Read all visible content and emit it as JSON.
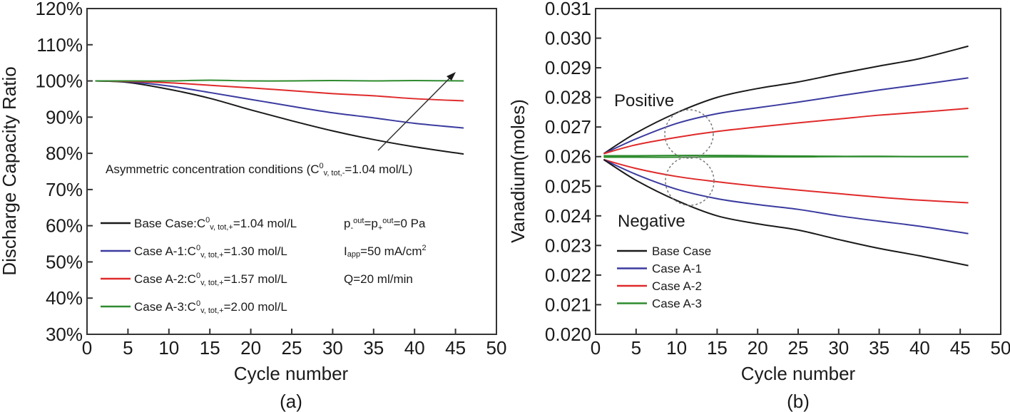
{
  "chart_data": [
    {
      "panel": "(a)",
      "type": "line",
      "title": "",
      "xlabel": "Cycle number",
      "ylabel": "Discharge Capacity Ratio",
      "xlim": [
        0,
        50
      ],
      "ylim": [
        30,
        120
      ],
      "x_ticks": [
        "0",
        "5",
        "10",
        "15",
        "20",
        "25",
        "30",
        "35",
        "40",
        "45",
        "50"
      ],
      "y_ticks": [
        "30%",
        "40%",
        "50%",
        "60%",
        "70%",
        "80%",
        "90%",
        "100%",
        "110%",
        "120%"
      ],
      "grid": false,
      "legend_position": "bottom-left",
      "annotation": {
        "main": "Asymmetric concentration conditions (C",
        "sup": "0",
        "sub": "v, tot,-",
        "tail": "=1.04 mol/L)"
      },
      "conditions": [
        {
          "id": "pressure",
          "parts": [
            "p",
            "-",
            "out",
            "=p",
            "+",
            "out",
            "=0 Pa"
          ]
        },
        {
          "id": "current",
          "parts": [
            "I",
            "app",
            "=50 mA/cm",
            "2"
          ]
        },
        {
          "id": "flow",
          "text": "Q=20 ml/min"
        }
      ],
      "x": [
        1,
        5,
        10,
        15,
        20,
        25,
        30,
        35,
        40,
        46
      ],
      "series": [
        {
          "name": "Base Case",
          "legend_prefix": "Base Case:C",
          "legend_value": "=1.04 mol/L",
          "color": "#1a1a1a",
          "values": [
            100,
            99.6,
            97.7,
            95.2,
            92.0,
            89.0,
            86.2,
            83.8,
            81.8,
            79.8
          ]
        },
        {
          "name": "Case A-1",
          "legend_prefix": "Case A-1:C",
          "legend_value": "=1.30 mol/L",
          "color": "#3b3ba0",
          "values": [
            100,
            99.8,
            98.6,
            96.8,
            94.9,
            93.0,
            91.2,
            89.8,
            88.3,
            87.0
          ]
        },
        {
          "name": "Case A-2",
          "legend_prefix": "Case A-2:C",
          "legend_value": "=1.57 mol/L",
          "color": "#e02a2a",
          "values": [
            100,
            99.9,
            99.5,
            98.8,
            98.1,
            97.3,
            96.5,
            95.9,
            95.1,
            94.5
          ]
        },
        {
          "name": "Case A-3",
          "legend_prefix": "Case A-3:C",
          "legend_value": "=2.00 mol/L",
          "color": "#2e8b2e",
          "values": [
            100,
            100,
            100,
            100.2,
            100,
            100,
            100.1,
            100,
            100.1,
            100
          ]
        }
      ],
      "legend_sup": "0",
      "legend_sub": "v, tot,+"
    },
    {
      "panel": "(b)",
      "type": "line",
      "title": "",
      "xlabel": "Cycle number",
      "ylabel": "Vanadium(moles)",
      "xlim": [
        0,
        50
      ],
      "ylim": [
        0.02,
        0.031
      ],
      "x_ticks": [
        "0",
        "5",
        "10",
        "15",
        "20",
        "25",
        "30",
        "35",
        "40",
        "45",
        "50"
      ],
      "y_ticks": [
        "0.020",
        "0.021",
        "0.022",
        "0.023",
        "0.024",
        "0.025",
        "0.026",
        "0.027",
        "0.028",
        "0.029",
        "0.030",
        "0.031"
      ],
      "grid": false,
      "legend_position": "bottom-left",
      "annotations": [
        "Positive",
        "Negative"
      ],
      "x": [
        1,
        5,
        10,
        15,
        20,
        25,
        30,
        35,
        40,
        46
      ],
      "series": [
        {
          "name": "Base Case (Positive)",
          "legend": "Base Case",
          "color": "#1a1a1a",
          "values": [
            0.0261,
            0.0268,
            0.02748,
            0.028,
            0.0283,
            0.02852,
            0.0288,
            0.02906,
            0.02931,
            0.02973
          ]
        },
        {
          "name": "Case A-1 (Positive)",
          "legend": "Case A-1",
          "color": "#3b3ba0",
          "values": [
            0.0261,
            0.0266,
            0.02712,
            0.02745,
            0.02765,
            0.02784,
            0.02805,
            0.02825,
            0.02843,
            0.02866
          ]
        },
        {
          "name": "Case A-2 (Positive)",
          "legend": "Case A-2",
          "color": "#e02a2a",
          "values": [
            0.0261,
            0.0264,
            0.02665,
            0.02685,
            0.027,
            0.02714,
            0.02727,
            0.0274,
            0.0275,
            0.02763
          ]
        },
        {
          "name": "Case A-3 (Positive)",
          "legend": "Case A-3",
          "color": "#2e8b2e",
          "values": [
            0.02603,
            0.02603,
            0.02604,
            0.02604,
            0.02603,
            0.02602,
            0.02601,
            0.02601,
            0.026,
            0.026
          ]
        },
        {
          "name": "Case A-3 (Negative)",
          "color": "#2e8b2e",
          "values": [
            0.02598,
            0.02598,
            0.02598,
            0.02599,
            0.02599,
            0.02599,
            0.026,
            0.026,
            0.026,
            0.026
          ]
        },
        {
          "name": "Case A-2 (Negative)",
          "color": "#e02a2a",
          "values": [
            0.0259,
            0.0256,
            0.02533,
            0.02515,
            0.025,
            0.02487,
            0.02475,
            0.02463,
            0.02453,
            0.02444
          ]
        },
        {
          "name": "Case A-1 (Negative)",
          "color": "#3b3ba0",
          "values": [
            0.0259,
            0.0254,
            0.0249,
            0.02458,
            0.02438,
            0.02422,
            0.024,
            0.02382,
            0.02365,
            0.0234
          ]
        },
        {
          "name": "Base Case (Negative)",
          "color": "#1a1a1a",
          "values": [
            0.0259,
            0.0252,
            0.02452,
            0.024,
            0.02373,
            0.02352,
            0.0232,
            0.0229,
            0.02265,
            0.02232
          ]
        }
      ]
    }
  ]
}
